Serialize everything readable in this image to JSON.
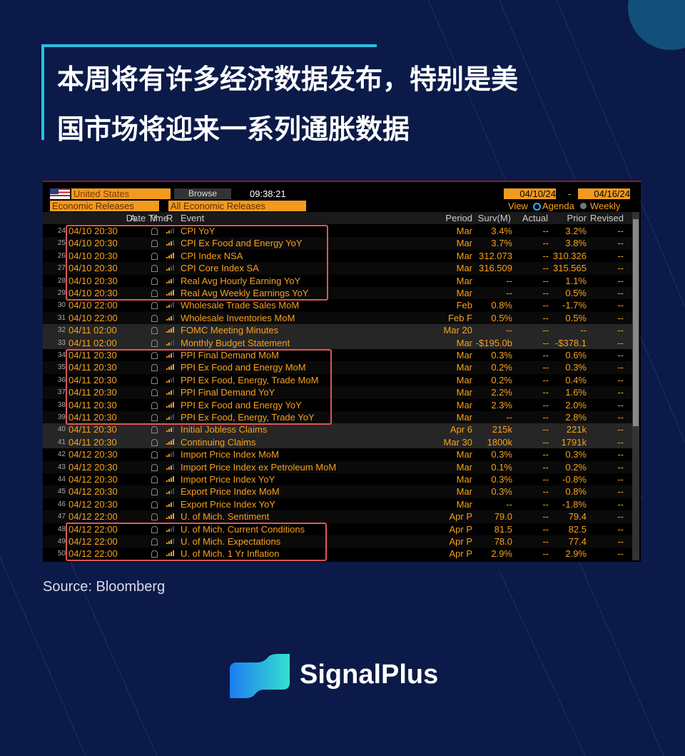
{
  "header": {
    "title_lines": [
      "本周将有许多经济数据发布，特别是美",
      "国市场将迎来一系列通胀数据"
    ]
  },
  "terminal": {
    "country": "United States",
    "browse": "Browse",
    "time": "09:38:21",
    "start_date": "04/10/24",
    "date_separator": "-",
    "end_date": "04/16/24",
    "filter1": "Economic Releases",
    "filter2": "All Economic Releases",
    "view": "View",
    "agenda": "Agenda",
    "weekly": "Weekly",
    "columns": [
      "Date Time",
      "A",
      "M",
      "R",
      "Event",
      "Period",
      "Surv(M)",
      "Actual",
      "Prior",
      "Revised"
    ],
    "rows": [
      [
        "24",
        "04/10 20:30",
        "CPI YoY",
        "Mar",
        "3.4%",
        "--",
        "3.2%",
        "--"
      ],
      [
        "25",
        "04/10 20:30",
        "CPI Ex Food and Energy YoY",
        "Mar",
        "3.7%",
        "--",
        "3.8%",
        "--"
      ],
      [
        "26",
        "04/10 20:30",
        "CPI Index NSA",
        "Mar",
        "312.073",
        "--",
        "310.326",
        "--"
      ],
      [
        "27",
        "04/10 20:30",
        "CPI Core Index SA",
        "Mar",
        "316.509",
        "--",
        "315.565",
        "--"
      ],
      [
        "28",
        "04/10 20:30",
        "Real Avg Hourly Earning YoY",
        "Mar",
        "--",
        "--",
        "1.1%",
        "--"
      ],
      [
        "29",
        "04/10 20:30",
        "Real Avg Weekly Earnings YoY",
        "Mar",
        "--",
        "--",
        "0.5%",
        "--"
      ],
      [
        "30",
        "04/10 22:00",
        "Wholesale Trade Sales MoM",
        "Feb",
        "0.8%",
        "--",
        "-1.7%",
        "--"
      ],
      [
        "31",
        "04/10 22:00",
        "Wholesale Inventories MoM",
        "Feb F",
        "0.5%",
        "--",
        "0.5%",
        "--"
      ],
      [
        "32",
        "04/11 02:00",
        "FOMC Meeting Minutes",
        "Mar 20",
        "--",
        "--",
        "--",
        "--"
      ],
      [
        "33",
        "04/11 02:00",
        "Monthly Budget Statement",
        "Mar",
        "-$195.0b",
        "--",
        "-$378.1",
        "--"
      ],
      [
        "34",
        "04/11 20:30",
        "PPI Final Demand MoM",
        "Mar",
        "0.3%",
        "--",
        "0.6%",
        "--"
      ],
      [
        "35",
        "04/11 20:30",
        "PPI Ex Food and Energy MoM",
        "Mar",
        "0.2%",
        "--",
        "0.3%",
        "--"
      ],
      [
        "36",
        "04/11 20:30",
        "PPI Ex Food, Energy, Trade MoM",
        "Mar",
        "0.2%",
        "--",
        "0.4%",
        "--"
      ],
      [
        "37",
        "04/11 20:30",
        "PPI Final Demand YoY",
        "Mar",
        "2.2%",
        "--",
        "1.6%",
        "--"
      ],
      [
        "38",
        "04/11 20:30",
        "PPI Ex Food and Energy YoY",
        "Mar",
        "2.3%",
        "--",
        "2.0%",
        "--"
      ],
      [
        "39",
        "04/11 20:30",
        "PPI Ex Food, Energy, Trade YoY",
        "Mar",
        "--",
        "--",
        "2.8%",
        "--"
      ],
      [
        "40",
        "04/11 20:30",
        "Initial Jobless Claims",
        "Apr 6",
        "215k",
        "--",
        "221k",
        "--"
      ],
      [
        "41",
        "04/11 20:30",
        "Continuing Claims",
        "Mar 30",
        "1800k",
        "--",
        "1791k",
        "--"
      ],
      [
        "42",
        "04/12 20:30",
        "Import Price Index MoM",
        "Mar",
        "0.3%",
        "--",
        "0.3%",
        "--"
      ],
      [
        "43",
        "04/12 20:30",
        "Import Price Index ex Petroleum MoM",
        "Mar",
        "0.1%",
        "--",
        "0.2%",
        "--"
      ],
      [
        "44",
        "04/12 20:30",
        "Import Price Index YoY",
        "Mar",
        "0.3%",
        "--",
        "-0.8%",
        "--"
      ],
      [
        "45",
        "04/12 20:30",
        "Export Price Index MoM",
        "Mar",
        "0.3%",
        "--",
        "0.8%",
        "--"
      ],
      [
        "46",
        "04/12 20:30",
        "Export Price Index YoY",
        "Mar",
        "--",
        "--",
        "-1.8%",
        "--"
      ],
      [
        "47",
        "04/12 22:00",
        "U. of Mich. Sentiment",
        "Apr P",
        "79.0",
        "--",
        "79.4",
        "--"
      ],
      [
        "48",
        "04/12 22:00",
        "U. of Mich. Current Conditions",
        "Apr P",
        "81.5",
        "--",
        "82.5",
        "--"
      ],
      [
        "49",
        "04/12 22:00",
        "U. of Mich. Expectations",
        "Apr P",
        "78.0",
        "--",
        "77.4",
        "--"
      ],
      [
        "50",
        "04/12 22:00",
        "U. of Mich. 1 Yr Inflation",
        "Apr P",
        "2.9%",
        "--",
        "2.9%",
        "--"
      ]
    ]
  },
  "source": "Source: Bloomberg",
  "brand": "SignalPlus"
}
